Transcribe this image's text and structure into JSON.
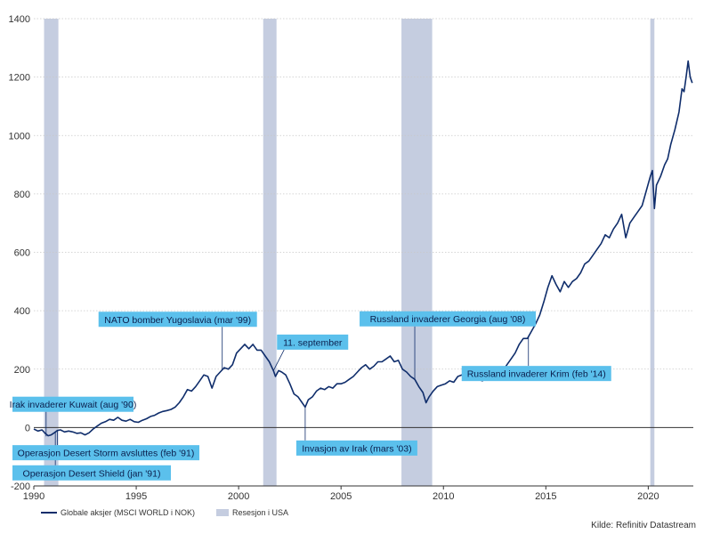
{
  "chart_data": {
    "type": "line",
    "title": "",
    "xlabel": "",
    "ylabel": "",
    "xlim": [
      1990,
      2022.2
    ],
    "ylim": [
      -200,
      1400
    ],
    "xticks": [
      1990,
      1995,
      2000,
      2005,
      2010,
      2015,
      2020
    ],
    "yticks": [
      -200,
      0,
      200,
      400,
      600,
      800,
      1000,
      1200,
      1400
    ],
    "grid": "horizontal dotted",
    "colors": {
      "series": "#0f2d6b",
      "recession": "#c5cde0",
      "annotation_fill": "#5bc0ec",
      "annotation_line": "#0f2d6b"
    },
    "series": [
      {
        "name": "Globale aksjer (MSCI WORLD i NOK)",
        "points": [
          [
            1990.0,
            -5
          ],
          [
            1990.2,
            -12
          ],
          [
            1990.4,
            -8
          ],
          [
            1990.55,
            -20
          ],
          [
            1990.7,
            -28
          ],
          [
            1990.85,
            -25
          ],
          [
            1991.0,
            -18
          ],
          [
            1991.15,
            -10
          ],
          [
            1991.3,
            -8
          ],
          [
            1991.5,
            -15
          ],
          [
            1991.7,
            -12
          ],
          [
            1991.9,
            -15
          ],
          [
            1992.1,
            -20
          ],
          [
            1992.3,
            -18
          ],
          [
            1992.5,
            -25
          ],
          [
            1992.7,
            -18
          ],
          [
            1992.9,
            -5
          ],
          [
            1993.1,
            5
          ],
          [
            1993.3,
            15
          ],
          [
            1993.5,
            20
          ],
          [
            1993.7,
            28
          ],
          [
            1993.9,
            25
          ],
          [
            1994.1,
            35
          ],
          [
            1994.3,
            25
          ],
          [
            1994.5,
            22
          ],
          [
            1994.7,
            28
          ],
          [
            1994.9,
            20
          ],
          [
            1995.1,
            18
          ],
          [
            1995.3,
            25
          ],
          [
            1995.5,
            30
          ],
          [
            1995.7,
            38
          ],
          [
            1995.9,
            42
          ],
          [
            1996.1,
            50
          ],
          [
            1996.3,
            55
          ],
          [
            1996.5,
            58
          ],
          [
            1996.7,
            62
          ],
          [
            1996.9,
            70
          ],
          [
            1997.1,
            85
          ],
          [
            1997.3,
            105
          ],
          [
            1997.5,
            130
          ],
          [
            1997.7,
            125
          ],
          [
            1997.9,
            140
          ],
          [
            1998.1,
            160
          ],
          [
            1998.3,
            180
          ],
          [
            1998.5,
            175
          ],
          [
            1998.7,
            135
          ],
          [
            1998.9,
            175
          ],
          [
            1999.1,
            190
          ],
          [
            1999.3,
            205
          ],
          [
            1999.5,
            200
          ],
          [
            1999.7,
            215
          ],
          [
            1999.9,
            255
          ],
          [
            2000.1,
            270
          ],
          [
            2000.3,
            285
          ],
          [
            2000.5,
            270
          ],
          [
            2000.7,
            285
          ],
          [
            2000.9,
            265
          ],
          [
            2001.1,
            265
          ],
          [
            2001.3,
            245
          ],
          [
            2001.5,
            225
          ],
          [
            2001.7,
            195
          ],
          [
            2001.8,
            175
          ],
          [
            2001.95,
            195
          ],
          [
            2002.1,
            190
          ],
          [
            2002.3,
            180
          ],
          [
            2002.5,
            150
          ],
          [
            2002.7,
            115
          ],
          [
            2002.9,
            105
          ],
          [
            2003.1,
            85
          ],
          [
            2003.25,
            70
          ],
          [
            2003.4,
            95
          ],
          [
            2003.6,
            105
          ],
          [
            2003.8,
            125
          ],
          [
            2004.0,
            135
          ],
          [
            2004.2,
            130
          ],
          [
            2004.4,
            140
          ],
          [
            2004.6,
            135
          ],
          [
            2004.8,
            150
          ],
          [
            2005.0,
            150
          ],
          [
            2005.2,
            155
          ],
          [
            2005.4,
            165
          ],
          [
            2005.6,
            175
          ],
          [
            2005.8,
            190
          ],
          [
            2006.0,
            205
          ],
          [
            2006.2,
            215
          ],
          [
            2006.4,
            200
          ],
          [
            2006.6,
            210
          ],
          [
            2006.8,
            225
          ],
          [
            2007.0,
            225
          ],
          [
            2007.2,
            235
          ],
          [
            2007.4,
            245
          ],
          [
            2007.6,
            225
          ],
          [
            2007.8,
            230
          ],
          [
            2008.0,
            200
          ],
          [
            2008.2,
            190
          ],
          [
            2008.4,
            175
          ],
          [
            2008.6,
            165
          ],
          [
            2008.8,
            140
          ],
          [
            2009.0,
            120
          ],
          [
            2009.15,
            85
          ],
          [
            2009.3,
            105
          ],
          [
            2009.5,
            125
          ],
          [
            2009.7,
            140
          ],
          [
            2009.9,
            145
          ],
          [
            2010.1,
            150
          ],
          [
            2010.3,
            160
          ],
          [
            2010.5,
            155
          ],
          [
            2010.7,
            175
          ],
          [
            2010.9,
            180
          ],
          [
            2011.1,
            185
          ],
          [
            2011.3,
            180
          ],
          [
            2011.5,
            170
          ],
          [
            2011.7,
            165
          ],
          [
            2011.9,
            160
          ],
          [
            2012.1,
            175
          ],
          [
            2012.3,
            170
          ],
          [
            2012.5,
            185
          ],
          [
            2012.7,
            190
          ],
          [
            2012.9,
            195
          ],
          [
            2013.1,
            215
          ],
          [
            2013.3,
            235
          ],
          [
            2013.5,
            255
          ],
          [
            2013.7,
            285
          ],
          [
            2013.9,
            305
          ],
          [
            2014.1,
            305
          ],
          [
            2014.3,
            330
          ],
          [
            2014.5,
            355
          ],
          [
            2014.7,
            385
          ],
          [
            2014.9,
            430
          ],
          [
            2015.1,
            480
          ],
          [
            2015.3,
            520
          ],
          [
            2015.5,
            490
          ],
          [
            2015.7,
            465
          ],
          [
            2015.9,
            500
          ],
          [
            2016.1,
            480
          ],
          [
            2016.3,
            500
          ],
          [
            2016.5,
            510
          ],
          [
            2016.7,
            530
          ],
          [
            2016.9,
            560
          ],
          [
            2017.1,
            570
          ],
          [
            2017.3,
            590
          ],
          [
            2017.5,
            610
          ],
          [
            2017.7,
            630
          ],
          [
            2017.9,
            660
          ],
          [
            2018.1,
            650
          ],
          [
            2018.3,
            680
          ],
          [
            2018.5,
            700
          ],
          [
            2018.7,
            730
          ],
          [
            2018.9,
            650
          ],
          [
            2019.1,
            700
          ],
          [
            2019.3,
            720
          ],
          [
            2019.5,
            740
          ],
          [
            2019.7,
            760
          ],
          [
            2019.9,
            810
          ],
          [
            2020.1,
            860
          ],
          [
            2020.2,
            880
          ],
          [
            2020.3,
            750
          ],
          [
            2020.4,
            830
          ],
          [
            2020.6,
            860
          ],
          [
            2020.8,
            900
          ],
          [
            2020.95,
            920
          ],
          [
            2021.1,
            970
          ],
          [
            2021.3,
            1020
          ],
          [
            2021.5,
            1080
          ],
          [
            2021.65,
            1160
          ],
          [
            2021.75,
            1150
          ],
          [
            2021.85,
            1200
          ],
          [
            2021.95,
            1255
          ],
          [
            2022.05,
            1200
          ],
          [
            2022.15,
            1180
          ]
        ]
      }
    ],
    "recessions": [
      {
        "start": 1990.5,
        "end": 1991.2
      },
      {
        "start": 2001.2,
        "end": 2001.85
      },
      {
        "start": 2007.95,
        "end": 2009.45
      },
      {
        "start": 2020.1,
        "end": 2020.3
      }
    ],
    "annotations": [
      {
        "text": "Irak invaderer Kuwait (aug '90)",
        "x": 1990.6,
        "y": -30,
        "label_side": "above"
      },
      {
        "text": "Operasjon Desert Shield (jan '91)",
        "x": 1991.05,
        "y": -15,
        "label_side": "below"
      },
      {
        "text": "Operasjon Desert Storm avsluttes (feb '91)",
        "x": 1991.15,
        "y": -10,
        "label_side": "below"
      },
      {
        "text": "NATO bomber Yugoslavia (mar '99)",
        "x": 1999.2,
        "y": 200,
        "label_side": "above"
      },
      {
        "text": "11. september",
        "x": 2001.7,
        "y": 195,
        "label_side": "above"
      },
      {
        "text": "Invasjon av Irak (mars '03)",
        "x": 2003.25,
        "y": 70,
        "label_side": "below"
      },
      {
        "text": "Russland invaderer Georgia (aug '08)",
        "x": 2008.6,
        "y": 165,
        "label_side": "above"
      },
      {
        "text": "Russland invaderer Krim (feb '14)",
        "x": 2014.15,
        "y": 310,
        "label_side": "below"
      }
    ]
  },
  "legend": {
    "series_label": "Globale aksjer (MSCI WORLD i NOK)",
    "recession_label": "Resesjon i USA"
  },
  "source": "Kilde: Refinitiv Datastream"
}
